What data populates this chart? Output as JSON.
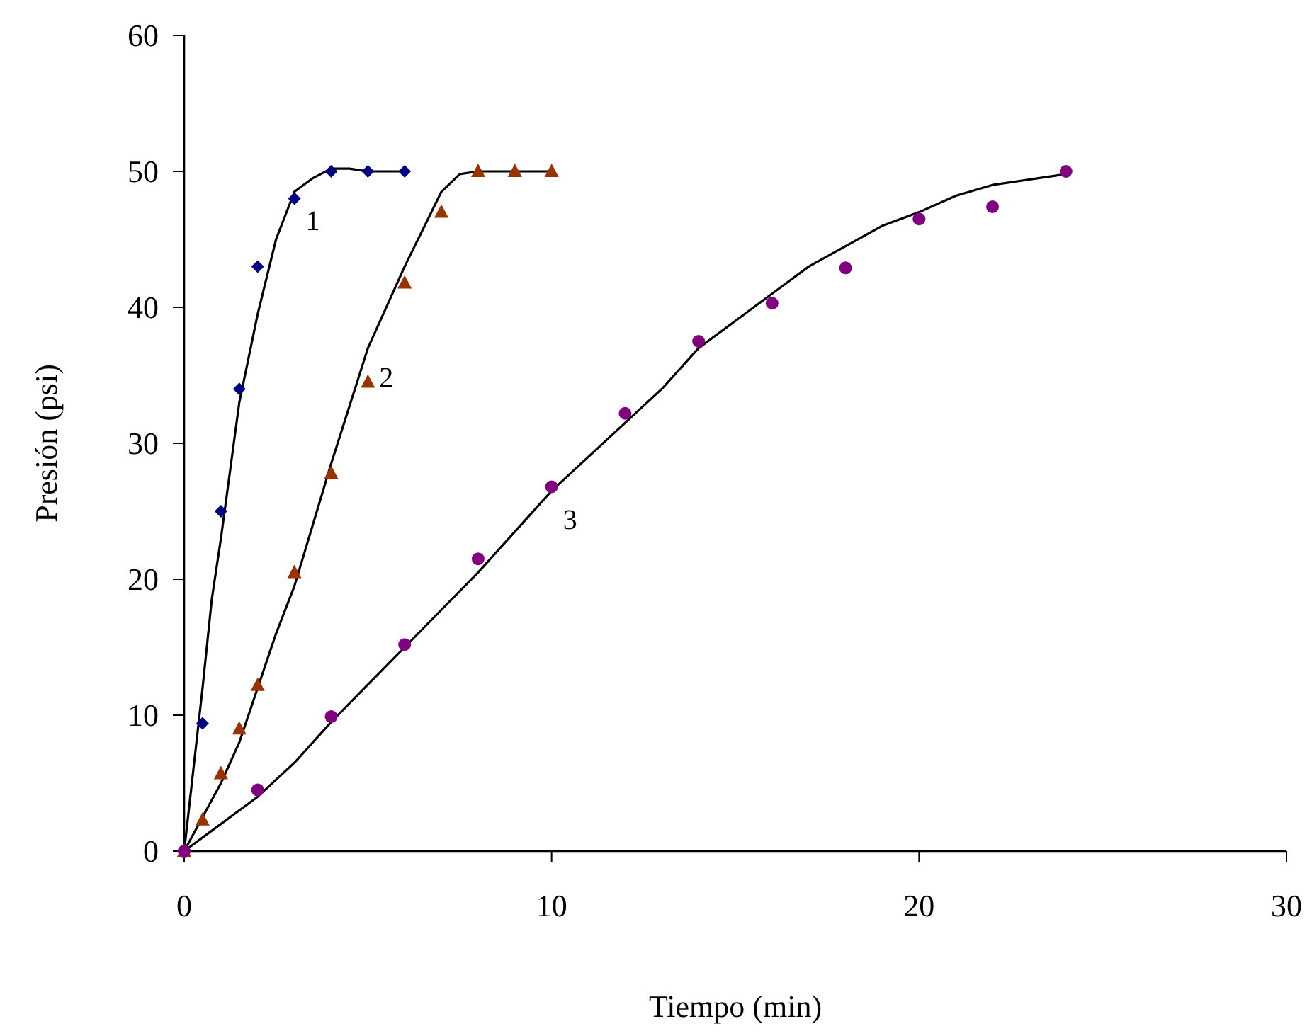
{
  "chart_data": {
    "type": "scatter",
    "xlabel": "Tiempo (min)",
    "ylabel": "Presión (psi)",
    "xlim": [
      0,
      30
    ],
    "xticks": [
      0,
      10,
      20,
      30
    ],
    "ylim": [
      0,
      60
    ],
    "yticks": [
      0,
      10,
      20,
      30,
      40,
      50,
      60
    ],
    "grid": false,
    "series": [
      {
        "marker": "diamond",
        "color": "#000080",
        "x": [
          0.5,
          1,
          1.5,
          2,
          3,
          4,
          5,
          6
        ],
        "values": [
          9.4,
          25,
          34,
          43,
          48,
          50,
          50,
          50
        ]
      },
      {
        "marker": "triangle",
        "color": "#993300",
        "x": [
          0,
          0.5,
          1,
          1.5,
          2,
          3,
          4,
          5,
          6,
          7,
          8,
          9,
          10
        ],
        "values": [
          0,
          2.3,
          5.7,
          9,
          12.2,
          20.5,
          27.8,
          34.5,
          41.8,
          47,
          50,
          50,
          50
        ]
      },
      {
        "marker": "circle",
        "color": "#800080",
        "x": [
          0,
          2,
          4,
          6,
          8,
          10,
          12,
          14,
          16,
          18,
          20,
          22,
          24
        ],
        "values": [
          0,
          4.5,
          9.9,
          15.2,
          21.5,
          26.8,
          32.2,
          37.5,
          40.3,
          42.9,
          46.5,
          47.4,
          50
        ]
      },
      {
        "type": "line",
        "marker": "none",
        "line_style": "solid",
        "color": "#000000",
        "x": [
          0,
          0.25,
          0.5,
          0.75,
          1,
          1.5,
          2,
          2.5,
          3,
          3.5,
          4,
          4.5,
          5,
          6
        ],
        "values": [
          0,
          6,
          12,
          18.5,
          23,
          33,
          39.5,
          45,
          48.5,
          49.5,
          50.2,
          50.2,
          50,
          50
        ]
      },
      {
        "type": "line",
        "marker": "none",
        "line_style": "solid",
        "color": "#000000",
        "x": [
          0,
          0.5,
          1,
          1.5,
          2,
          2.5,
          3,
          3.5,
          4,
          5,
          6,
          7,
          7.5,
          8,
          10
        ],
        "values": [
          0,
          2.5,
          5,
          8,
          12,
          16,
          19.5,
          24,
          28.5,
          37,
          43,
          48.5,
          49.8,
          50,
          50
        ]
      },
      {
        "type": "line",
        "marker": "none",
        "line_style": "solid",
        "color": "#000000",
        "x": [
          0,
          1,
          2,
          3,
          4,
          6,
          8,
          10,
          12,
          13,
          14,
          16,
          17,
          18,
          19,
          20,
          21,
          22,
          24
        ],
        "values": [
          0,
          2,
          4,
          6.5,
          9.5,
          15,
          20.5,
          26.5,
          31.5,
          34,
          37,
          41,
          43,
          44.5,
          46,
          47,
          48.2,
          49,
          49.8
        ]
      }
    ],
    "annotations": [
      {
        "text": "1",
        "x": 3,
        "y": 48.5
      },
      {
        "text": "2",
        "x": 5,
        "y": 37
      },
      {
        "text": "3",
        "x": 10,
        "y": 26.5
      }
    ]
  }
}
